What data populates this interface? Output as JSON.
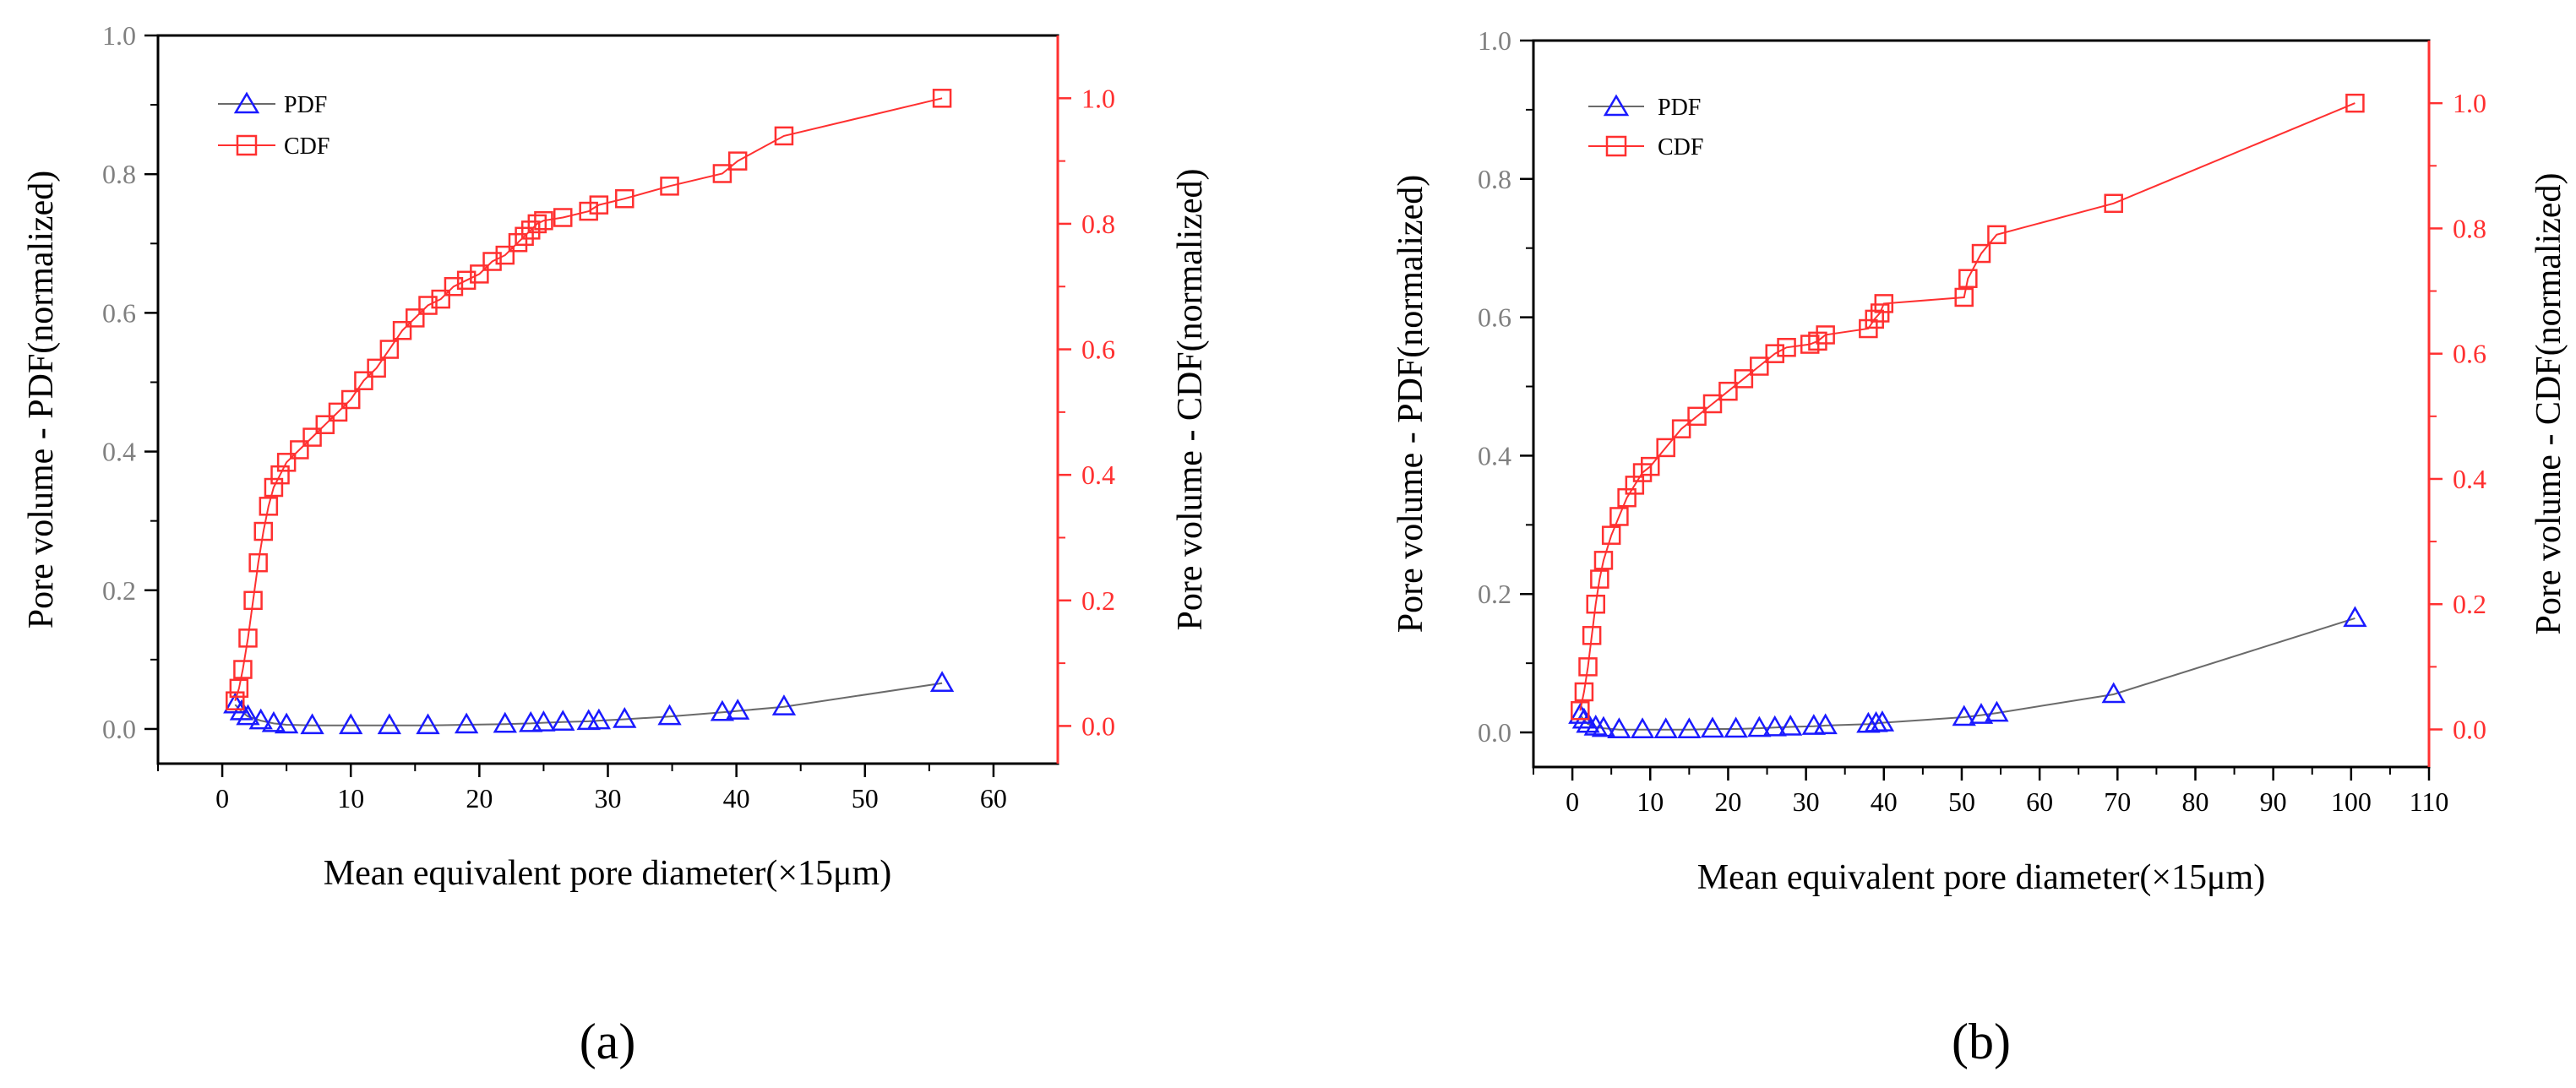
{
  "colors": {
    "pdf": "#1a1aff",
    "pdf_line": "#6a6a6a",
    "cdf": "#ff3030",
    "left_tick": "#808080",
    "axis": "#000000"
  },
  "chart_data": [
    {
      "panel_label": "(a)",
      "type": "line",
      "xlabel": "Mean equivalent pore diameter(×15μm)",
      "ylabel_left": "Pore volume - PDF(normalized)",
      "ylabel_right": "Pore volume - CDF(normalized)",
      "xlim": [
        -5,
        65
      ],
      "x_ticks": [
        0,
        10,
        20,
        30,
        40,
        50,
        60
      ],
      "x_ticklabels": [
        "0",
        "10",
        "20",
        "30",
        "40",
        "50",
        "60"
      ],
      "ylim_left": [
        -0.05,
        1.0
      ],
      "y_ticks_left": [
        0.0,
        0.2,
        0.4,
        0.6,
        0.8,
        1.0
      ],
      "y_ticklabels_left": [
        "0.0",
        "0.2",
        "0.4",
        "0.6",
        "0.8",
        "1.0"
      ],
      "ylim_right": [
        -0.06,
        1.1
      ],
      "y_ticks_right": [
        0.0,
        0.2,
        0.4,
        0.6,
        0.8,
        1.0
      ],
      "y_ticklabels_right": [
        "0.0",
        "0.2",
        "0.4",
        "0.6",
        "0.8",
        "1.0"
      ],
      "legend": {
        "position": "top-left",
        "entries": [
          "PDF",
          "CDF"
        ]
      },
      "series": [
        {
          "name": "PDF",
          "axis": "left",
          "marker": "triangle",
          "x": [
            1.0,
            1.5,
            2.0,
            3.0,
            4.0,
            5.0,
            7.0,
            10.0,
            13.0,
            16.0,
            19.0,
            22.0,
            24.0,
            25.0,
            26.5,
            28.5,
            29.3,
            31.3,
            34.8,
            38.9,
            40.1,
            43.7,
            56.0
          ],
          "y": [
            0.035,
            0.025,
            0.018,
            0.012,
            0.008,
            0.006,
            0.005,
            0.005,
            0.005,
            0.005,
            0.006,
            0.007,
            0.008,
            0.009,
            0.01,
            0.011,
            0.012,
            0.014,
            0.018,
            0.024,
            0.026,
            0.032,
            0.066
          ]
        },
        {
          "name": "CDF",
          "axis": "right",
          "marker": "square",
          "x": [
            1.0,
            1.3,
            1.6,
            2.0,
            2.4,
            2.8,
            3.2,
            3.6,
            4.0,
            4.5,
            5.0,
            6.0,
            7.0,
            8.0,
            9.0,
            10.0,
            11.0,
            12.0,
            13.0,
            14.0,
            15.0,
            16.0,
            17.0,
            18.0,
            19.0,
            20.0,
            21.0,
            22.0,
            23.0,
            23.5,
            24.0,
            24.5,
            25.0,
            26.5,
            28.5,
            29.3,
            31.3,
            34.8,
            38.9,
            40.1,
            43.7,
            56.0
          ],
          "y": [
            0.04,
            0.06,
            0.09,
            0.14,
            0.2,
            0.26,
            0.31,
            0.35,
            0.38,
            0.4,
            0.42,
            0.44,
            0.46,
            0.48,
            0.5,
            0.52,
            0.55,
            0.57,
            0.6,
            0.63,
            0.65,
            0.67,
            0.68,
            0.7,
            0.71,
            0.72,
            0.74,
            0.75,
            0.77,
            0.78,
            0.79,
            0.8,
            0.805,
            0.81,
            0.82,
            0.83,
            0.84,
            0.86,
            0.88,
            0.9,
            0.94,
            1.0
          ]
        }
      ]
    },
    {
      "panel_label": "(b)",
      "type": "line",
      "xlabel": "Mean equivalent pore diameter(×15μm)",
      "ylabel_left": "Pore volume - PDF(normalized)",
      "ylabel_right": "Pore volume - CDF(normalized)",
      "xlim": [
        -5,
        110
      ],
      "x_ticks": [
        0,
        10,
        20,
        30,
        40,
        50,
        60,
        70,
        80,
        90,
        100,
        110
      ],
      "x_ticklabels": [
        "0",
        "10",
        "20",
        "30",
        "40",
        "50",
        "60",
        "70",
        "80",
        "90",
        "100",
        "110"
      ],
      "ylim_left": [
        -0.05,
        1.0
      ],
      "y_ticks_left": [
        0.0,
        0.2,
        0.4,
        0.6,
        0.8,
        1.0
      ],
      "y_ticklabels_left": [
        "0.0",
        "0.2",
        "0.4",
        "0.6",
        "0.8",
        "1.0"
      ],
      "ylim_right": [
        -0.06,
        1.1
      ],
      "y_ticks_right": [
        0.0,
        0.2,
        0.4,
        0.6,
        0.8,
        1.0
      ],
      "y_ticklabels_right": [
        "0.0",
        "0.2",
        "0.4",
        "0.6",
        "0.8",
        "1.0"
      ],
      "legend": {
        "position": "top-left",
        "entries": [
          "PDF",
          "CDF"
        ]
      },
      "series": [
        {
          "name": "PDF",
          "axis": "left",
          "marker": "triangle",
          "x": [
            1.0,
            1.5,
            2.0,
            3.0,
            4.0,
            6.0,
            9.0,
            12.0,
            15.0,
            18.0,
            21.0,
            24.0,
            26.0,
            28.0,
            31.0,
            32.5,
            38.0,
            39.0,
            39.8,
            50.3,
            52.5,
            54.5,
            69.5,
            100.5
          ],
          "y": [
            0.025,
            0.018,
            0.012,
            0.008,
            0.006,
            0.004,
            0.004,
            0.004,
            0.004,
            0.005,
            0.005,
            0.006,
            0.007,
            0.008,
            0.009,
            0.01,
            0.012,
            0.013,
            0.014,
            0.022,
            0.025,
            0.028,
            0.055,
            0.165
          ]
        },
        {
          "name": "CDF",
          "axis": "right",
          "marker": "square",
          "x": [
            1.0,
            1.5,
            2.0,
            2.5,
            3.0,
            3.5,
            4.0,
            5.0,
            6.0,
            7.0,
            8.0,
            9.0,
            10.0,
            12.0,
            14.0,
            16.0,
            18.0,
            20.0,
            22.0,
            24.0,
            26.0,
            27.5,
            30.5,
            31.5,
            32.5,
            38.0,
            38.8,
            39.5,
            40.0,
            50.3,
            50.8,
            52.5,
            54.5,
            69.5,
            100.5
          ],
          "y": [
            0.03,
            0.06,
            0.1,
            0.15,
            0.2,
            0.24,
            0.27,
            0.31,
            0.34,
            0.37,
            0.39,
            0.41,
            0.42,
            0.45,
            0.48,
            0.5,
            0.52,
            0.54,
            0.56,
            0.58,
            0.6,
            0.61,
            0.615,
            0.62,
            0.63,
            0.64,
            0.655,
            0.665,
            0.68,
            0.69,
            0.72,
            0.76,
            0.79,
            0.84,
            1.0
          ]
        }
      ]
    }
  ]
}
